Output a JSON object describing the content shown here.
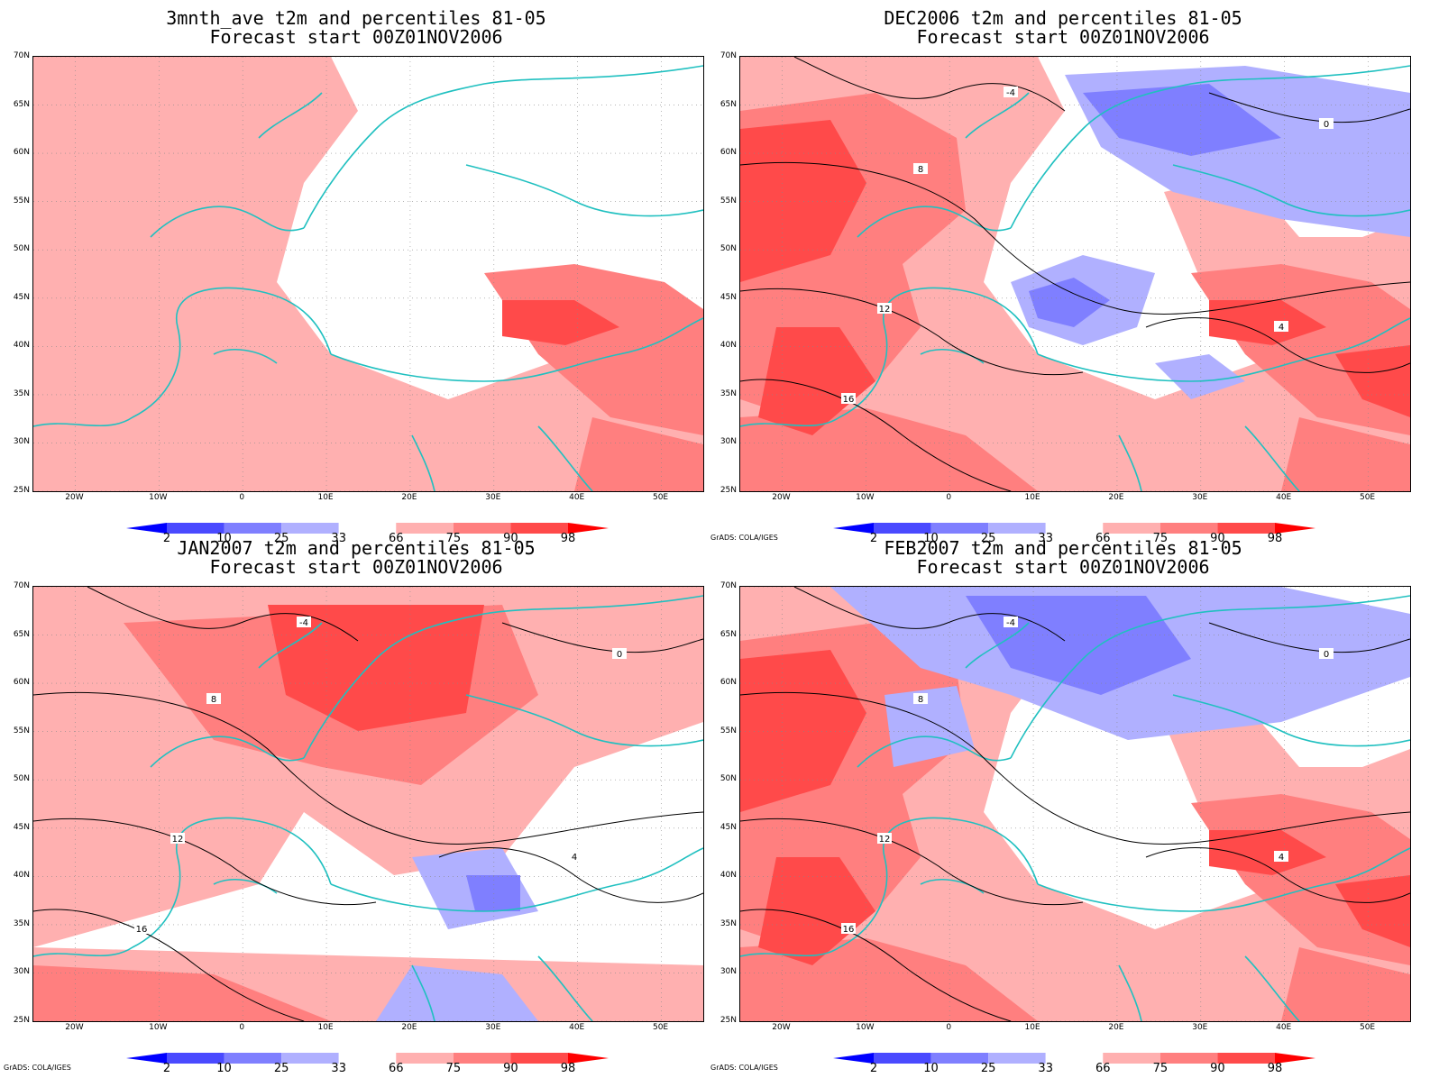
{
  "panels": [
    {
      "title1": "3mnth_ave t2m and percentiles 81-05",
      "title2": "Forecast start 00Z01NOV2006",
      "credit": "",
      "contours": false
    },
    {
      "title1": "DEC2006 t2m and percentiles 81-05",
      "title2": "Forecast start 00Z01NOV2006",
      "credit": "GrADS: COLA/IGES",
      "contours": true
    },
    {
      "title1": "JAN2007 t2m and percentiles 81-05",
      "title2": "Forecast start 00Z01NOV2006",
      "credit": "GrADS: COLA/IGES",
      "contours": true
    },
    {
      "title1": "FEB2007 t2m and percentiles 81-05",
      "title2": "Forecast start 00Z01NOV2006",
      "credit": "GrADS: COLA/IGES",
      "contours": true
    }
  ],
  "lat_labels": [
    "70N",
    "65N",
    "60N",
    "55N",
    "50N",
    "45N",
    "40N",
    "35N",
    "30N",
    "25N"
  ],
  "lon_labels": [
    "20W",
    "10W",
    "0",
    "10E",
    "20E",
    "30E",
    "40E",
    "50E"
  ],
  "colorbar": {
    "labels": [
      "2",
      "10",
      "25",
      "33",
      "66",
      "75",
      "90",
      "98"
    ],
    "colors": [
      "#0000ff",
      "#4a4aff",
      "#7f7fff",
      "#b0b0ff",
      "#ffffff",
      "#ffb0b0",
      "#ff7f7f",
      "#ff4a4a",
      "#ff0000"
    ]
  },
  "colors": {
    "coast": "#20c0c0",
    "contour": "#000000",
    "red_light": "#ffb0b0",
    "red_mid": "#ff7f7f",
    "red_strong": "#ff4a4a",
    "red_max": "#ff0000",
    "blue_light": "#b0b0ff",
    "blue_mid": "#7f7fff",
    "blue_strong": "#4a4aff"
  }
}
